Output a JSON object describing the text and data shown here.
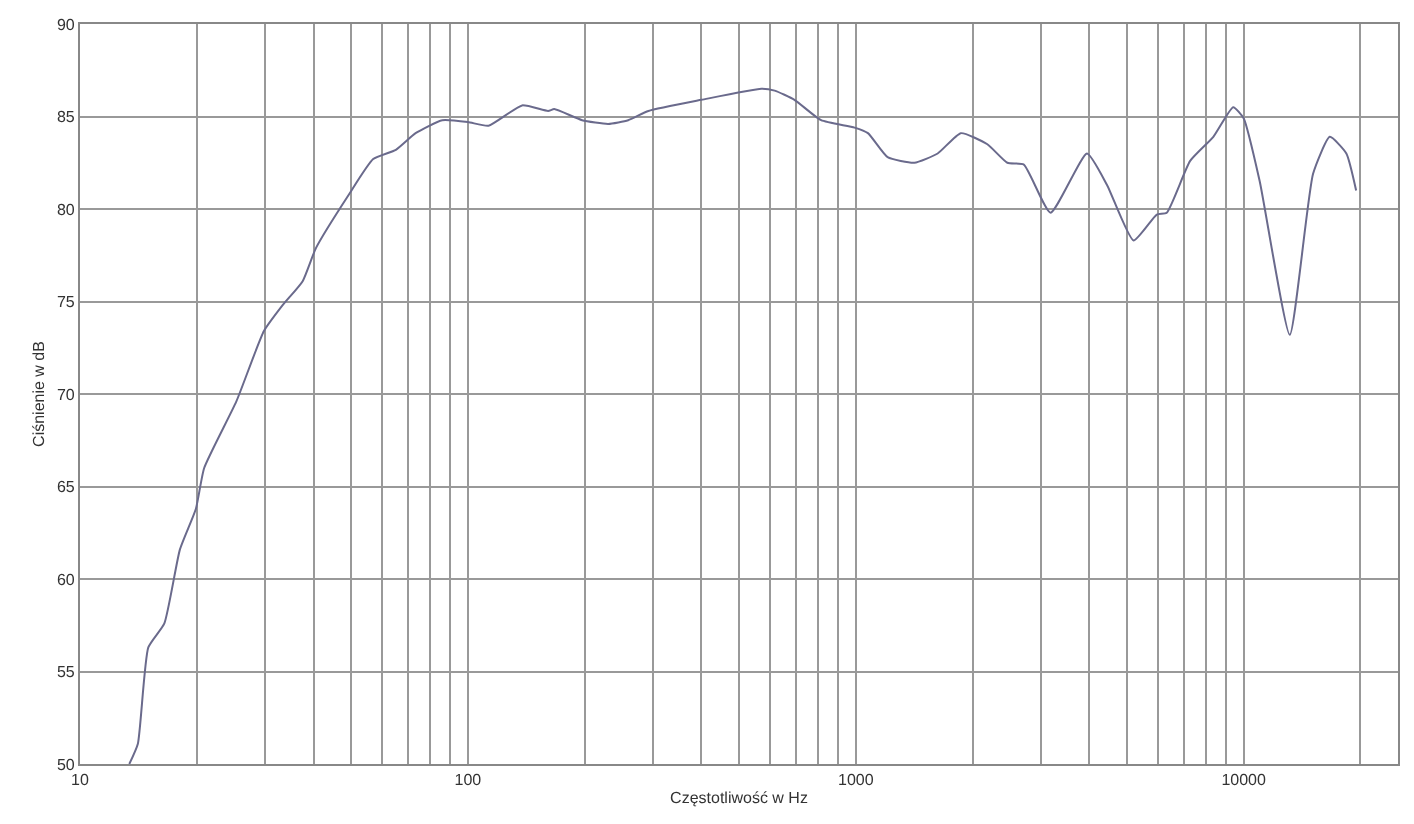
{
  "chart_data": {
    "type": "line",
    "xlabel": "Częstotliwość w Hz",
    "ylabel": "Ciśnienie w dB",
    "log": "x",
    "grid": true,
    "marker": "none",
    "line_style": "solid",
    "xlim": [
      10,
      25000
    ],
    "ylim": [
      50,
      90
    ],
    "xticks": [
      10,
      {
        "value": 20,
        "label": null
      },
      {
        "value": 30,
        "label": null
      },
      {
        "value": 40,
        "label": null
      },
      {
        "value": 50,
        "label": null
      },
      {
        "value": 60,
        "label": null
      },
      {
        "value": 70,
        "label": null
      },
      {
        "value": 80,
        "label": null
      },
      {
        "value": 90,
        "label": null
      },
      100,
      {
        "value": 200,
        "label": null
      },
      {
        "value": 300,
        "label": null
      },
      {
        "value": 400,
        "label": null
      },
      {
        "value": 500,
        "label": null
      },
      {
        "value": 600,
        "label": null
      },
      {
        "value": 700,
        "label": null
      },
      {
        "value": 800,
        "label": null
      },
      {
        "value": 900,
        "label": null
      },
      1000,
      {
        "value": 2000,
        "label": null
      },
      {
        "value": 3000,
        "label": null
      },
      {
        "value": 4000,
        "label": null
      },
      {
        "value": 5000,
        "label": null
      },
      {
        "value": 6000,
        "label": null
      },
      {
        "value": 7000,
        "label": null
      },
      {
        "value": 8000,
        "label": null
      },
      {
        "value": 9000,
        "label": null
      },
      10000,
      {
        "value": 20000,
        "label": null
      }
    ],
    "yticks": [
      50,
      55,
      60,
      65,
      70,
      75,
      80,
      85,
      90
    ],
    "series": [
      {
        "color": "#6a6a8c",
        "x": [
          13.4,
          14.1,
          15.0,
          16.5,
          18.1,
          19.9,
          20.9,
          25.3,
          29.8,
          33.3,
          37.5,
          40.6,
          49.4,
          57,
          65.2,
          73.3,
          85.9,
          100,
          113,
          138,
          161,
          167,
          197,
          230,
          259,
          292,
          400,
          571,
          618,
          695,
          814,
          993,
          1075,
          1208,
          1416,
          1626,
          1866,
          2184,
          2459,
          2712,
          3178,
          3946,
          4444,
          5202,
          5972,
          6335,
          7279,
          8353,
          9400,
          10000,
          11000,
          13150,
          15100,
          16680,
          18400,
          19500
        ],
        "values": [
          50,
          51.1,
          56.3,
          57.6,
          61.6,
          63.8,
          66.0,
          69.6,
          73.4,
          74.8,
          76.1,
          77.9,
          80.8,
          82.7,
          83.2,
          84.1,
          84.8,
          84.7,
          84.5,
          85.6,
          85.3,
          85.4,
          84.8,
          84.6,
          84.8,
          85.3,
          85.9,
          86.5,
          86.4,
          85.9,
          84.8,
          84.4,
          84.1,
          82.8,
          82.5,
          83.0,
          84.1,
          83.5,
          82.5,
          82.4,
          79.8,
          83.0,
          81.3,
          78.3,
          79.7,
          79.8,
          82.6,
          83.9,
          85.5,
          84.9,
          81.5,
          73.2,
          81.9,
          83.9,
          83.0,
          81.0
        ]
      }
    ]
  }
}
